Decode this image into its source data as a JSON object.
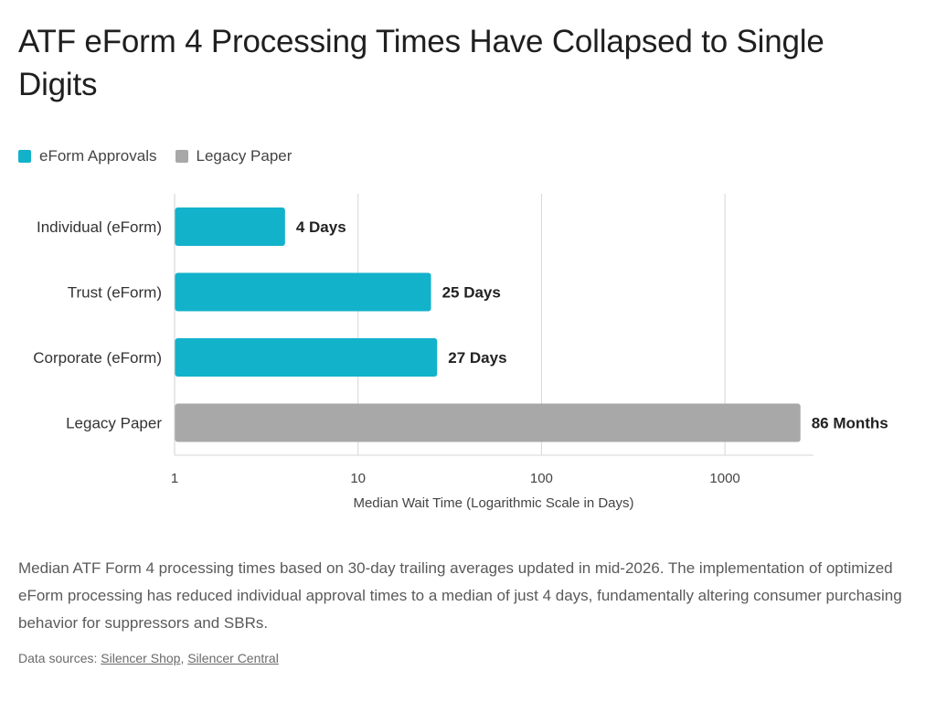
{
  "title": "ATF eForm 4 Processing Times Have Collapsed to Single Digits",
  "legend": [
    {
      "label": "eForm Approvals",
      "color": "#13b2cb"
    },
    {
      "label": "Legacy Paper",
      "color": "#a8a8a8"
    }
  ],
  "chart_data": {
    "type": "bar",
    "orientation": "horizontal",
    "x_scale": "log",
    "xlim": [
      1,
      5000
    ],
    "xticks": [
      1,
      10,
      100,
      1000
    ],
    "xtick_labels": [
      "1",
      "10",
      "100",
      "1000"
    ],
    "xlabel": "Median Wait Time (Logarithmic Scale in Days)",
    "grid": true,
    "legend_position": "top-left",
    "categories": [
      "Individual (eForm)",
      "Trust (eForm)",
      "Corporate (eForm)",
      "Legacy Paper"
    ],
    "values": [
      4,
      25,
      27,
      2580
    ],
    "data_labels": [
      "4 Days",
      "25 Days",
      "27 Days",
      "86 Months"
    ],
    "series_of_bar": [
      "eForm Approvals",
      "eForm Approvals",
      "eForm Approvals",
      "Legacy Paper"
    ],
    "colors": [
      "#13b2cb",
      "#13b2cb",
      "#13b2cb",
      "#a8a8a8"
    ]
  },
  "caption": "Median ATF Form 4 processing times based on 30-day trailing averages updated in mid-2026. The implementation of optimized eForm processing has reduced individual approval times to a median of just 4 days, fundamentally altering consumer purchasing behavior for suppressors and SBRs.",
  "sources": {
    "prefix": "Data sources:",
    "separator": ",",
    "links": [
      "Silencer Shop",
      "Silencer Central"
    ]
  }
}
